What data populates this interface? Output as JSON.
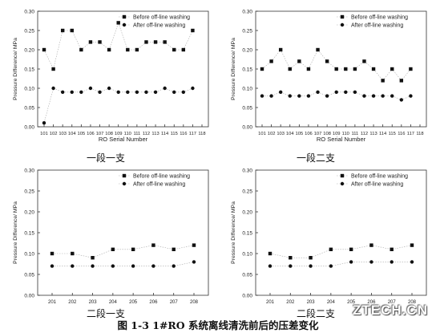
{
  "figure_caption": "图 1-3    1#RO 系统离线清洗前后的压差变化",
  "watermark": "ZTECH.CN",
  "chart_data": [
    {
      "type": "line",
      "caption": "一段一支",
      "xlabel": "RO Serial Number",
      "ylabel": "Pressure Difference/ MPa",
      "categories": [
        "101",
        "102",
        "103",
        "104",
        "105",
        "106",
        "107",
        "108",
        "109",
        "110",
        "111",
        "112",
        "113",
        "114",
        "115",
        "116",
        "117",
        "118"
      ],
      "ylim": [
        0,
        0.3
      ],
      "yticks": [
        "0.00",
        "0.05",
        "0.10",
        "0.15",
        "0.20",
        "0.25",
        "0.30"
      ],
      "legend_position": "top-right",
      "series": [
        {
          "name": "Before off-line washing",
          "marker": "square",
          "values": [
            0.2,
            0.15,
            0.25,
            0.25,
            0.2,
            0.22,
            0.22,
            0.2,
            0.27,
            0.2,
            0.2,
            0.22,
            0.22,
            0.22,
            0.2,
            0.2,
            0.25,
            null
          ]
        },
        {
          "name": "After off-line washing",
          "marker": "circle",
          "values": [
            0.01,
            0.1,
            0.09,
            0.09,
            0.09,
            0.1,
            0.09,
            0.1,
            0.09,
            0.09,
            0.09,
            0.09,
            0.09,
            0.1,
            0.09,
            0.09,
            0.1,
            null
          ]
        }
      ]
    },
    {
      "type": "line",
      "caption": "一段二支",
      "xlabel": "RO Serial Number",
      "ylabel": "Pressure Difference/ MPa",
      "categories": [
        "101",
        "102",
        "103",
        "104",
        "105",
        "106",
        "107",
        "108",
        "109",
        "110",
        "111",
        "112",
        "113",
        "114",
        "115",
        "116",
        "117",
        "118"
      ],
      "ylim": [
        0,
        0.3
      ],
      "yticks": [
        "0.00",
        "0.05",
        "0.10",
        "0.15",
        "0.20",
        "0.25",
        "0.30"
      ],
      "legend_position": "top-right",
      "series": [
        {
          "name": "Before off-line washing",
          "marker": "square",
          "values": [
            0.15,
            0.17,
            0.2,
            0.15,
            0.17,
            0.15,
            0.2,
            0.17,
            0.15,
            0.15,
            0.15,
            0.17,
            0.15,
            0.12,
            0.15,
            0.12,
            0.15,
            null
          ]
        },
        {
          "name": "After off-line washing",
          "marker": "circle",
          "values": [
            0.08,
            0.08,
            0.09,
            0.08,
            0.08,
            0.08,
            0.09,
            0.08,
            0.09,
            0.09,
            0.09,
            0.08,
            0.08,
            0.08,
            0.08,
            0.07,
            0.08,
            null
          ]
        }
      ]
    },
    {
      "type": "line",
      "caption": "二段一支",
      "xlabel": "",
      "ylabel": "Pressure Difference/ MPa",
      "categories": [
        "201",
        "202",
        "203",
        "204",
        "205",
        "206",
        "207",
        "208"
      ],
      "ylim": [
        0,
        0.3
      ],
      "yticks": [
        "0.00",
        "0.05",
        "0.10",
        "0.15",
        "0.20",
        "0.25",
        "0.30"
      ],
      "legend_position": "top-right",
      "series": [
        {
          "name": "Before off-line washing",
          "marker": "square",
          "values": [
            0.1,
            0.1,
            0.09,
            0.11,
            0.11,
            0.12,
            0.11,
            0.12
          ]
        },
        {
          "name": "After off-line washing",
          "marker": "circle",
          "values": [
            0.07,
            0.07,
            0.07,
            0.07,
            0.07,
            0.07,
            0.07,
            0.08
          ]
        }
      ]
    },
    {
      "type": "line",
      "caption": "二段二支",
      "xlabel": "",
      "ylabel": "Pressure Difference/ MPa",
      "categories": [
        "201",
        "202",
        "203",
        "204",
        "205",
        "206",
        "207",
        "208"
      ],
      "ylim": [
        0,
        0.3
      ],
      "yticks": [
        "0.00",
        "0.05",
        "0.10",
        "0.15",
        "0.20",
        "0.25",
        "0.30"
      ],
      "legend_position": "top-right",
      "series": [
        {
          "name": "Before off-line washing",
          "marker": "square",
          "values": [
            0.1,
            0.09,
            0.09,
            0.11,
            0.11,
            0.12,
            0.11,
            0.12
          ]
        },
        {
          "name": "After off-line washing",
          "marker": "circle",
          "values": [
            0.07,
            0.07,
            0.07,
            0.07,
            0.08,
            0.08,
            0.08,
            0.08
          ]
        }
      ]
    }
  ]
}
